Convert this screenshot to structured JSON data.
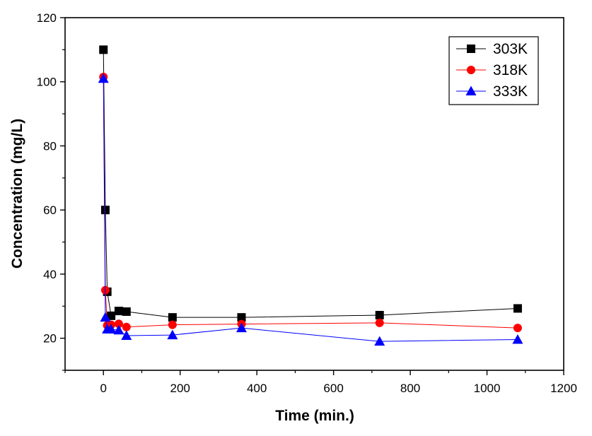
{
  "chart_data": {
    "type": "line",
    "title": "",
    "xlabel": "Time (min.)",
    "ylabel": "Concentration (mg/L)",
    "xlim": [
      -100,
      1200
    ],
    "ylim": [
      10,
      120
    ],
    "x_ticks": [
      0,
      200,
      400,
      600,
      800,
      1000,
      1200
    ],
    "y_ticks": [
      20,
      40,
      60,
      80,
      100,
      120
    ],
    "legend_position": "top-right",
    "series": [
      {
        "name": "303K",
        "color": "#000000",
        "marker": "square",
        "x": [
          0,
          5,
          10,
          20,
          40,
          60,
          180,
          360,
          720,
          1080
        ],
        "y": [
          110,
          60,
          34.5,
          27,
          28.5,
          28.3,
          26.5,
          26.5,
          27.2,
          29.3
        ]
      },
      {
        "name": "318K",
        "color": "#ff0000",
        "marker": "circle",
        "x": [
          0,
          5,
          10,
          20,
          40,
          60,
          180,
          360,
          720,
          1080
        ],
        "y": [
          101.5,
          35,
          24,
          24.2,
          24.5,
          23.5,
          24.2,
          24.4,
          24.8,
          23.2
        ]
      },
      {
        "name": "333K",
        "color": "#0000ff",
        "marker": "triangle",
        "x": [
          0,
          5,
          10,
          20,
          40,
          60,
          180,
          360,
          720,
          1080
        ],
        "y": [
          101,
          26.5,
          22.8,
          22.8,
          22.5,
          20.8,
          21,
          23.2,
          19,
          19.6
        ]
      }
    ]
  }
}
